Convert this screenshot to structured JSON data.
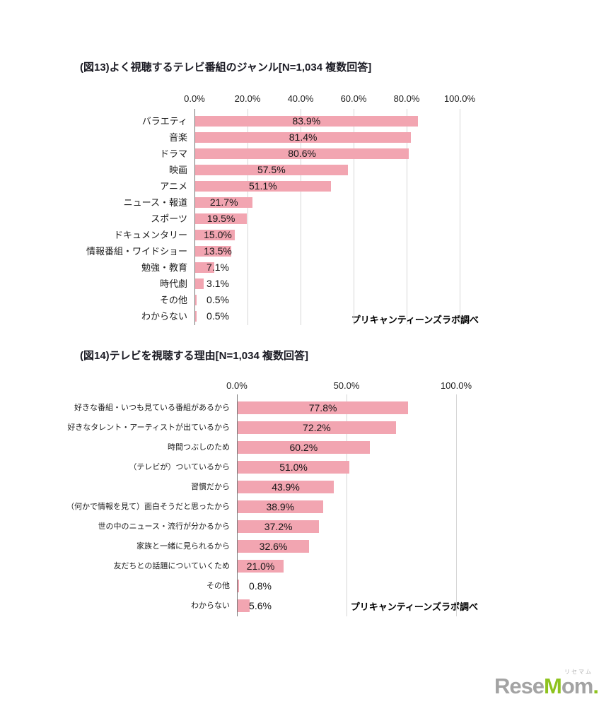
{
  "page": {
    "background": "#ffffff"
  },
  "chart_data": [
    {
      "figure_id": "図13",
      "title": "(図13)よく視聴するテレビ番組のジャンル[N=1,034 複数回答]",
      "type": "bar",
      "orientation": "horizontal",
      "sample": "N=1,034",
      "source": "プリキャンティーンズラボ調べ",
      "x_ticks": [
        "0.0%",
        "20.0%",
        "40.0%",
        "60.0%",
        "80.0%",
        "100.0%"
      ],
      "xlim": [
        0,
        100
      ],
      "grid": true,
      "bar_color": "#f2a5b1",
      "categories": [
        "バラエティ",
        "音楽",
        "ドラマ",
        "映画",
        "アニメ",
        "ニュース・報道",
        "スポーツ",
        "ドキュメンタリー",
        "情報番組・ワイドショー",
        "勉強・教育",
        "時代劇",
        "その他",
        "わからない"
      ],
      "values": [
        83.9,
        81.4,
        80.6,
        57.5,
        51.1,
        21.7,
        19.5,
        15.0,
        13.5,
        7.1,
        3.1,
        0.5,
        0.5
      ],
      "value_labels": [
        "83.9%",
        "81.4%",
        "80.6%",
        "57.5%",
        "51.1%",
        "21.7%",
        "19.5%",
        "15.0%",
        "13.5%",
        "7.1%",
        "3.1%",
        "0.5%",
        "0.5%"
      ]
    },
    {
      "figure_id": "図14",
      "title": "(図14)テレビを視聴する理由[N=1,034 複数回答]",
      "type": "bar",
      "orientation": "horizontal",
      "sample": "N=1,034",
      "source": "プリキャンティーンズラボ調べ",
      "x_ticks": [
        "0.0%",
        "50.0%",
        "100.0%"
      ],
      "xlim": [
        0,
        100
      ],
      "grid": true,
      "bar_color": "#f2a5b1",
      "categories": [
        "好きな番組・いつも見ている番組があるから",
        "好きなタレント・アーティストが出ているから",
        "時間つぶしのため",
        "（テレビが）ついているから",
        "習慣だから",
        "（何かで情報を見て）面白そうだと思ったから",
        "世の中のニュース・流行が分かるから",
        "家族と一緒に見られるから",
        "友だちとの話題についていくため",
        "その他",
        "わからない"
      ],
      "values": [
        77.8,
        72.2,
        60.2,
        51.0,
        43.9,
        38.9,
        37.2,
        32.6,
        21.0,
        0.8,
        5.6
      ],
      "value_labels": [
        "77.8%",
        "72.2%",
        "60.2%",
        "51.0%",
        "43.9%",
        "38.9%",
        "37.2%",
        "32.6%",
        "21.0%",
        "0.8%",
        "5.6%"
      ]
    }
  ],
  "footer": {
    "logo_ruby": "リセマム",
    "logo_text_gray_1": "Rese",
    "logo_text_green_1": "M",
    "logo_text_gray_2": "om",
    "logo_text_green_2": ".",
    "logo_color_gray": "#a3a3a3",
    "logo_color_green": "#8ec31f"
  }
}
